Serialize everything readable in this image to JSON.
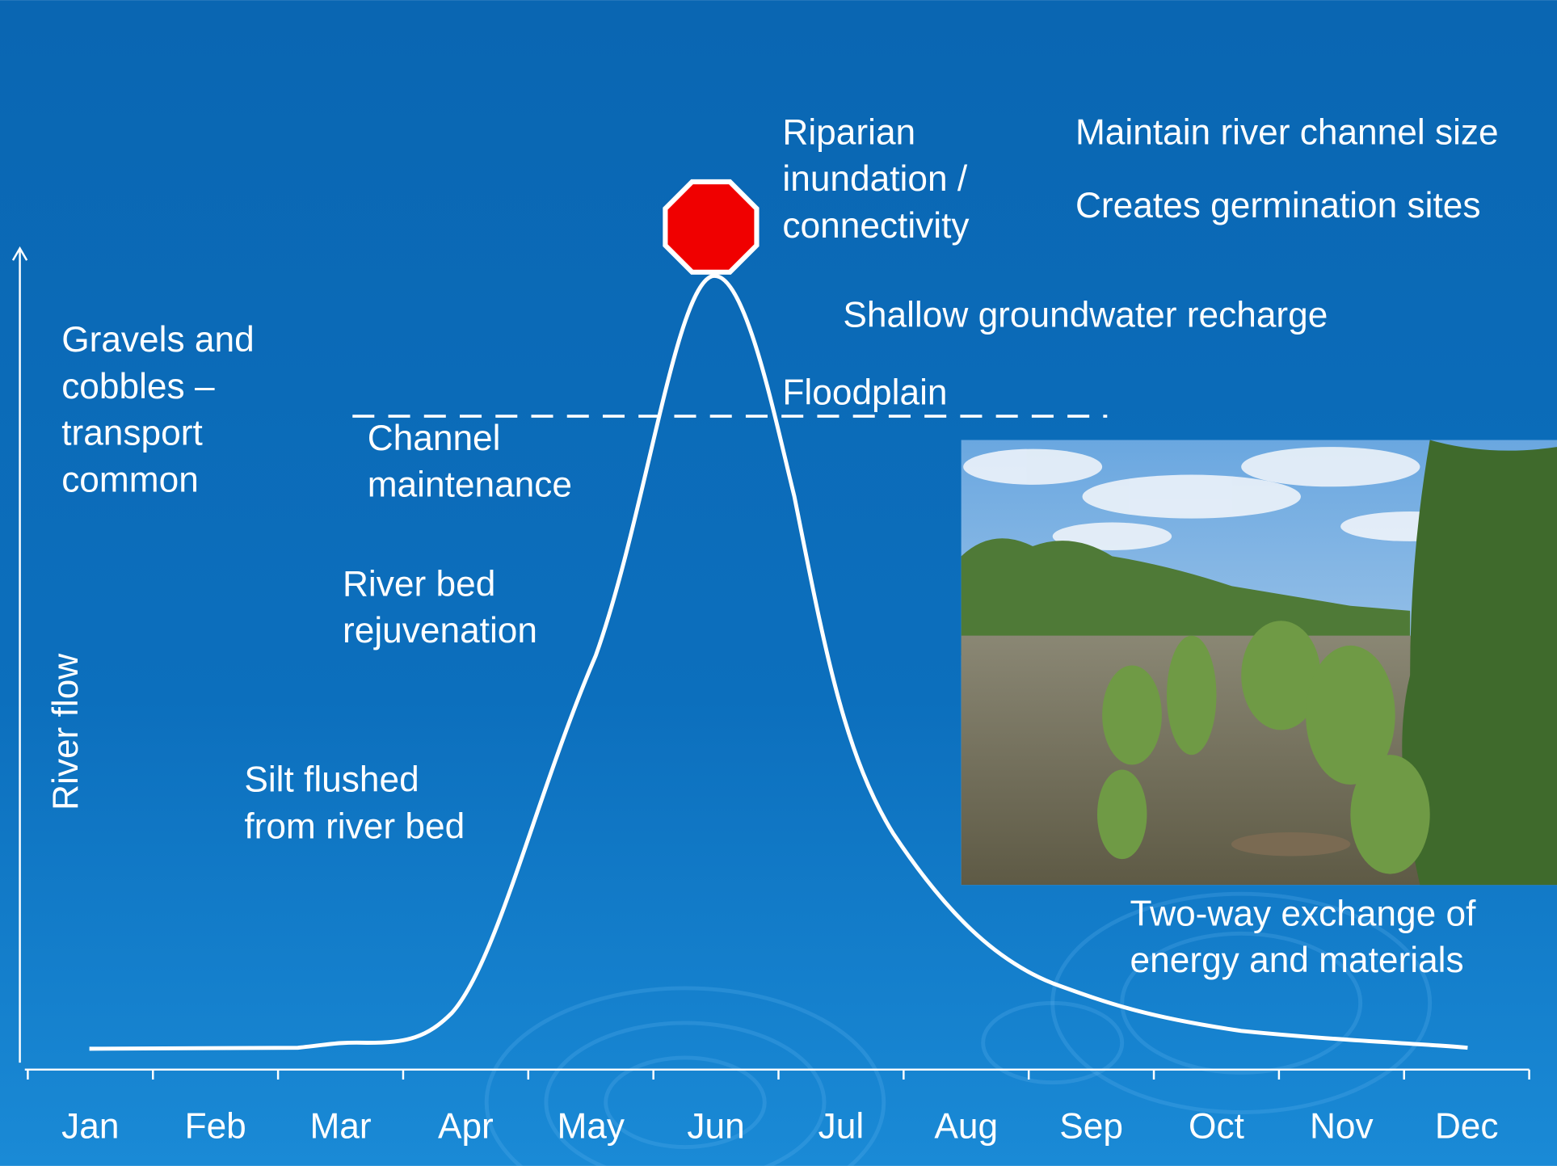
{
  "axis": {
    "y_label": "River flow",
    "months": [
      "Jan",
      "Feb",
      "Mar",
      "Apr",
      "May",
      "Jun",
      "Jul",
      "Aug",
      "Sep",
      "Oct",
      "Nov",
      "Dec"
    ]
  },
  "floodplain_label": "Floodplain",
  "annotations": {
    "riparian": [
      "Riparian",
      "inundation /",
      "connectivity"
    ],
    "channel_size": "Maintain river channel size",
    "germination": "Creates germination sites",
    "groundwater": "Shallow groundwater recharge",
    "gravels": [
      "Gravels and",
      "cobbles –",
      "transport",
      "common"
    ],
    "channel_maintenance": [
      "Channel",
      "maintenance"
    ],
    "river_bed": [
      "River bed",
      "rejuvenation"
    ],
    "silt": [
      "Silt flushed",
      "from river bed"
    ],
    "exchange": [
      "Two-way exchange of",
      "energy and materials"
    ]
  }
}
